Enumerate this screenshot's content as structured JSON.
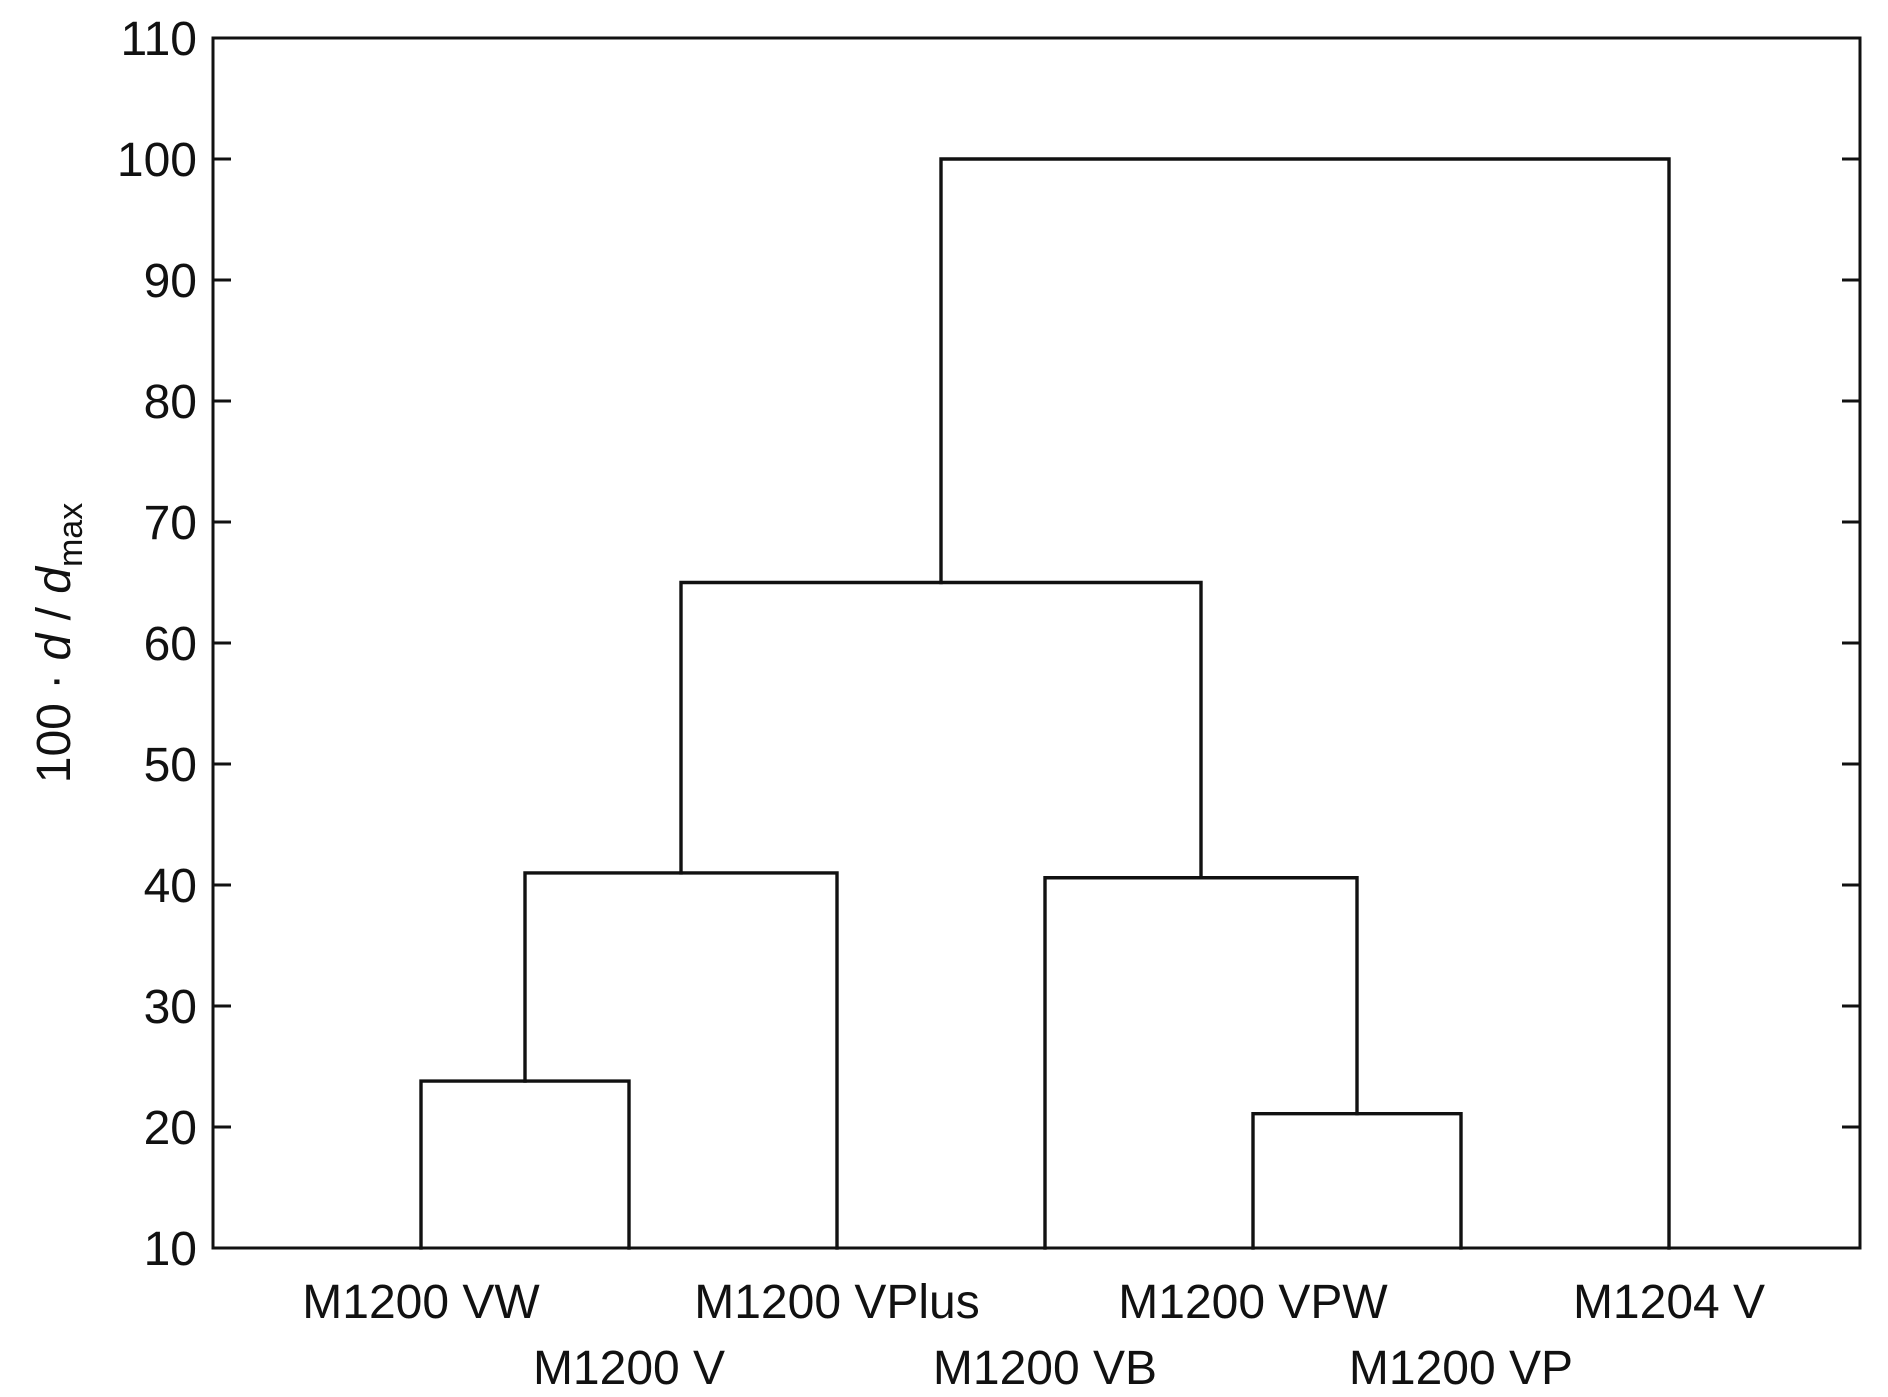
{
  "chart_data": {
    "type": "dendrogram",
    "ylabel": {
      "prefix": "100 · ",
      "var1": "d",
      "sep": " / ",
      "var2": "d",
      "subscript": "max"
    },
    "ylim": [
      10,
      110
    ],
    "yticks": [
      10,
      20,
      30,
      40,
      50,
      60,
      70,
      80,
      90,
      100,
      110
    ],
    "grid": false,
    "leaves": [
      "M1200 VW",
      "M1200 V",
      "M1200 VPlus",
      "M1200 VB",
      "M1200 VPW",
      "M1200 VP",
      "M1204 V"
    ],
    "merges": [
      {
        "left": "M1200 VW",
        "right": "M1200 V",
        "height": 23.8
      },
      {
        "left": "M1200 VPW",
        "right": "M1200 VP",
        "height": 21.1
      },
      {
        "left": "M1200 VW + M1200 V",
        "right": "M1200 VPlus",
        "height": 41.0
      },
      {
        "left": "M1200 VB",
        "right": "M1200 VPW + M1200 VP",
        "height": 40.6
      },
      {
        "left": "M1200 VW + M1200 V + M1200 VPlus",
        "right": "M1200 VB + M1200 VPW + M1200 VP",
        "height": 65.0
      },
      {
        "left": "M1200 VW + M1200 V + M1200 VPlus + M1200 VB + M1200 VPW + M1200 VP",
        "right": "M1204 V",
        "height": 100.0
      }
    ]
  }
}
